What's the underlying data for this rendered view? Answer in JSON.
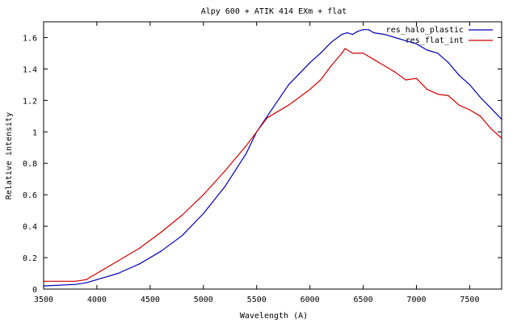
{
  "chart_data": {
    "type": "line",
    "title": "Alpy 600 + ATIK 414 EXm + flat",
    "xlabel": "Wavelength (A)",
    "ylabel": "Relative intensity",
    "xlim": [
      3500,
      7800
    ],
    "ylim": [
      0,
      1.7
    ],
    "xticks": [
      3500,
      4000,
      4500,
      5000,
      5500,
      6000,
      6500,
      7000,
      7500
    ],
    "yticks": [
      0,
      0.2,
      0.4,
      0.6,
      0.8,
      1,
      1.2,
      1.4,
      1.6
    ],
    "xtick_labels": [
      "3500",
      "4000",
      "4500",
      "5000",
      "5500",
      "6000",
      "6500",
      "7000",
      "7500"
    ],
    "ytick_labels": [
      "0",
      "0.2",
      "0.4",
      "0.6",
      "0.8",
      "1",
      "1.2",
      "1.4",
      "1.6"
    ],
    "grid": false,
    "legend_position": "top-right",
    "series": [
      {
        "name": "res_halo_plastic",
        "color": "#0000b0",
        "x": [
          3500,
          3800,
          3900,
          4000,
          4200,
          4400,
          4600,
          4800,
          5000,
          5200,
          5400,
          5500,
          5600,
          5800,
          5900,
          6000,
          6100,
          6200,
          6300,
          6350,
          6400,
          6450,
          6500,
          6550,
          6600,
          6700,
          6800,
          6900,
          7000,
          7100,
          7200,
          7300,
          7400,
          7500,
          7600,
          7700,
          7800
        ],
        "y": [
          0.02,
          0.03,
          0.04,
          0.06,
          0.1,
          0.16,
          0.24,
          0.34,
          0.48,
          0.65,
          0.86,
          1.0,
          1.1,
          1.3,
          1.37,
          1.44,
          1.5,
          1.57,
          1.62,
          1.63,
          1.62,
          1.64,
          1.65,
          1.65,
          1.63,
          1.62,
          1.6,
          1.58,
          1.56,
          1.52,
          1.5,
          1.44,
          1.36,
          1.3,
          1.22,
          1.15,
          1.08
        ]
      },
      {
        "name": "res_flat_int",
        "color": "#d00000",
        "x": [
          3500,
          3800,
          3900,
          4000,
          4200,
          4400,
          4600,
          4800,
          5000,
          5200,
          5400,
          5500,
          5600,
          5800,
          5900,
          6000,
          6100,
          6200,
          6300,
          6330,
          6400,
          6500,
          6600,
          6700,
          6800,
          6900,
          7000,
          7100,
          7200,
          7300,
          7400,
          7500,
          7600,
          7700,
          7800
        ],
        "y": [
          0.05,
          0.05,
          0.06,
          0.1,
          0.18,
          0.26,
          0.36,
          0.47,
          0.6,
          0.75,
          0.91,
          1.0,
          1.09,
          1.17,
          1.22,
          1.27,
          1.33,
          1.42,
          1.5,
          1.53,
          1.5,
          1.5,
          1.46,
          1.42,
          1.38,
          1.33,
          1.34,
          1.27,
          1.24,
          1.23,
          1.17,
          1.14,
          1.1,
          1.02,
          0.96
        ]
      }
    ]
  }
}
